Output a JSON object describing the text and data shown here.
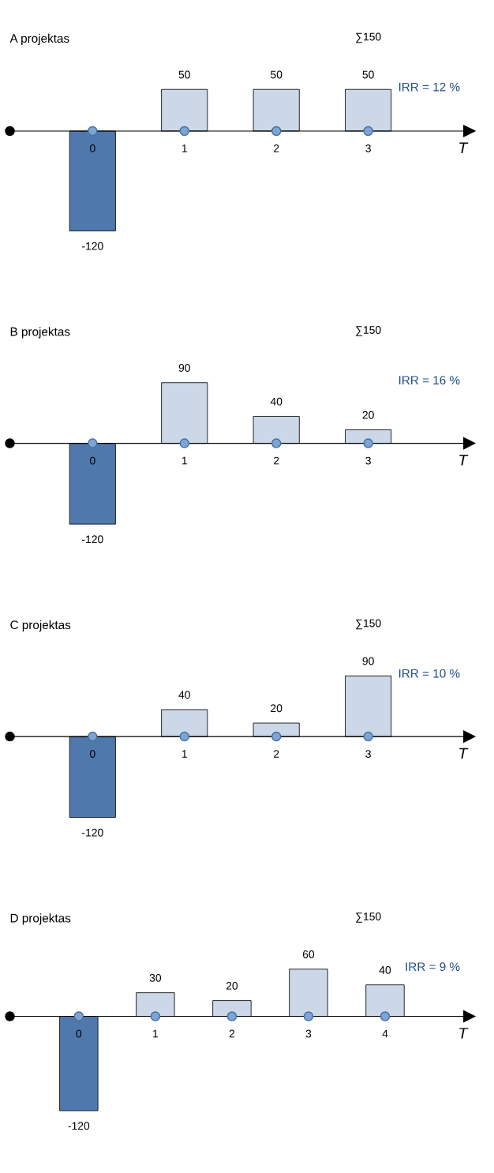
{
  "chart_data": [
    {
      "type": "bar",
      "title": "A projektas",
      "xlabel": "T",
      "categories": [
        "0",
        "1",
        "2",
        "3"
      ],
      "marker": "circle",
      "annotations": [
        "∑150",
        "IRR = 12 %"
      ],
      "series": [
        {
          "values": [
            -120,
            50,
            50,
            50
          ],
          "value_labels": [
            "-120",
            "50",
            "50",
            "50"
          ],
          "colors": [
            "#4f79ad",
            "#ccd8e8",
            "#ccd8e8",
            "#ccd8e8"
          ]
        },
        {
          "type": "scatter",
          "values": [
            0,
            0,
            0,
            0
          ],
          "color": "#7ea3d4"
        }
      ]
    },
    {
      "type": "bar",
      "title": "B projektas",
      "xlabel": "T",
      "categories": [
        "0",
        "1",
        "2",
        "3"
      ],
      "marker": "circle",
      "annotations": [
        "∑150",
        "IRR = 16 %"
      ],
      "series": [
        {
          "values": [
            -120,
            90,
            40,
            20
          ],
          "value_labels": [
            "-120",
            "90",
            "40",
            "20"
          ],
          "colors": [
            "#4f79ad",
            "#ccd8e8",
            "#ccd8e8",
            "#ccd8e8"
          ]
        },
        {
          "type": "scatter",
          "values": [
            0,
            0,
            0,
            0
          ],
          "color": "#7ea3d4"
        }
      ]
    },
    {
      "type": "bar",
      "title": "C projektas",
      "xlabel": "T",
      "categories": [
        "0",
        "1",
        "2",
        "3"
      ],
      "marker": "circle",
      "annotations": [
        "∑150",
        "IRR = 10 %"
      ],
      "series": [
        {
          "values": [
            -120,
            40,
            20,
            90
          ],
          "value_labels": [
            "-120",
            "40",
            "20",
            "90"
          ],
          "colors": [
            "#4f79ad",
            "#ccd8e8",
            "#ccd8e8",
            "#ccd8e8"
          ]
        },
        {
          "type": "scatter",
          "values": [
            0,
            0,
            0,
            0
          ],
          "color": "#7ea3d4"
        }
      ]
    },
    {
      "type": "bar",
      "title": "D projektas",
      "xlabel": "T",
      "categories": [
        "0",
        "1",
        "2",
        "3",
        "4"
      ],
      "marker": "circle",
      "annotations": [
        "∑150",
        "IRR = 9 %"
      ],
      "series": [
        {
          "values": [
            -120,
            30,
            20,
            60,
            40
          ],
          "value_labels": [
            "-120",
            "30",
            "20",
            "60",
            "40"
          ],
          "colors": [
            "#4f79ad",
            "#ccd8e8",
            "#ccd8e8",
            "#ccd8e8",
            "#ccd8e8"
          ]
        },
        {
          "type": "scatter",
          "values": [
            0,
            0,
            0,
            0,
            0
          ],
          "color": "#7ea3d4"
        }
      ]
    }
  ]
}
